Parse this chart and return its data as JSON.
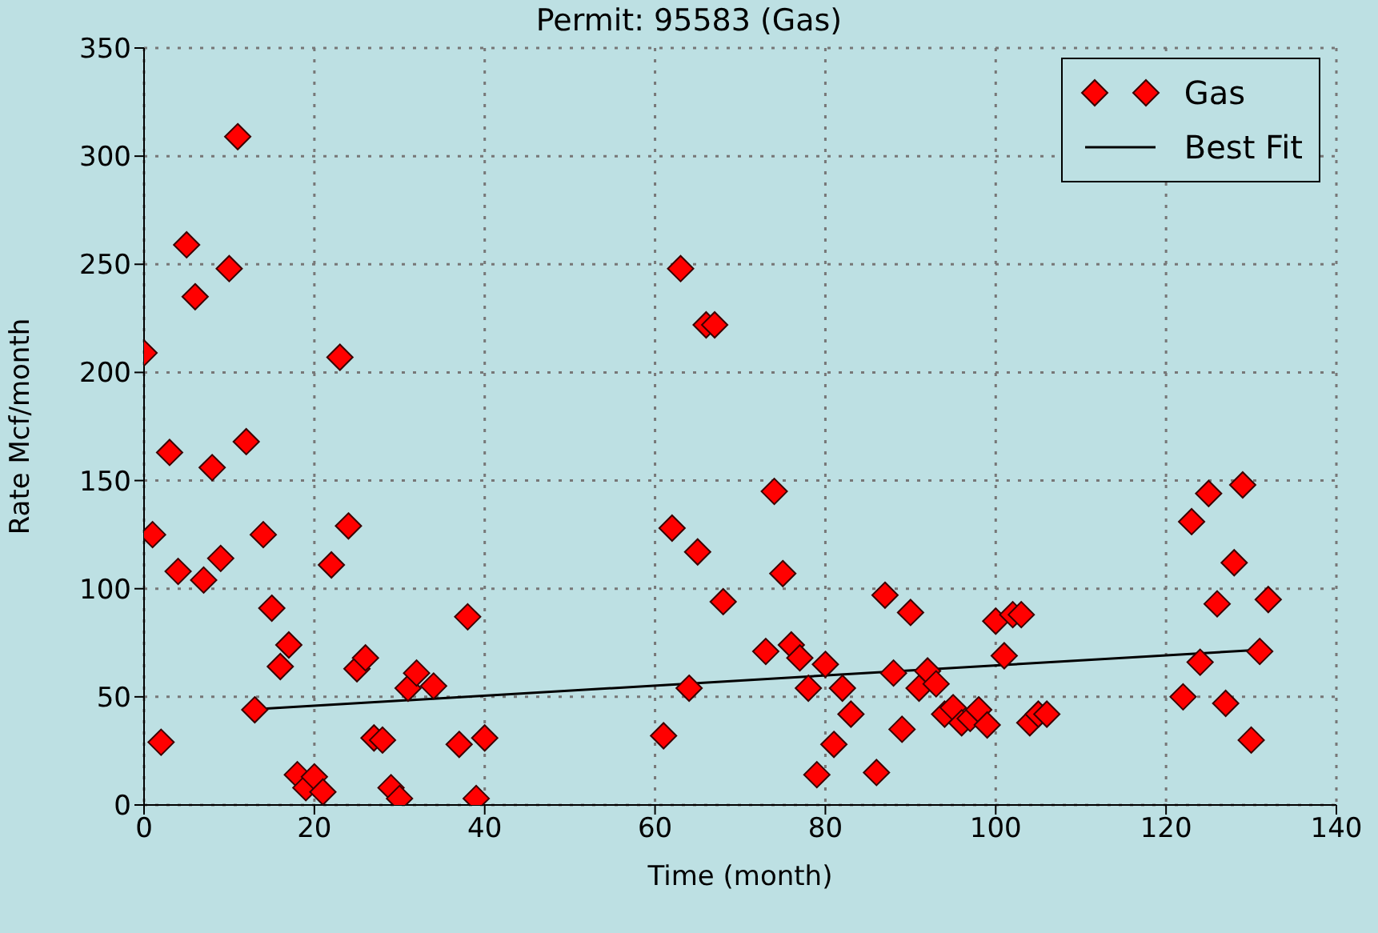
{
  "chart_data": {
    "type": "scatter",
    "title": "Permit: 95583 (Gas)",
    "xlabel": "Time (month)",
    "ylabel": "Rate Mcf/month",
    "xlim": [
      0,
      140
    ],
    "ylim": [
      0,
      350
    ],
    "xticks": [
      0,
      20,
      40,
      60,
      80,
      100,
      120,
      140
    ],
    "yticks": [
      0,
      50,
      100,
      150,
      200,
      250,
      300,
      350
    ],
    "grid": true,
    "legend": "top right",
    "marker": "diamond",
    "series": [
      {
        "name": "Gas",
        "color": "#ff0000",
        "x": [
          0,
          1,
          2,
          3,
          4,
          5,
          6,
          7,
          8,
          9,
          10,
          11,
          12,
          13,
          14,
          15,
          16,
          17,
          18,
          19,
          20,
          21,
          22,
          23,
          24,
          25,
          26,
          27,
          28,
          29,
          30,
          31,
          32,
          34,
          37,
          38,
          39,
          40,
          61,
          62,
          63,
          64,
          65,
          66,
          67,
          68,
          73,
          74,
          75,
          76,
          77,
          78,
          79,
          80,
          81,
          82,
          83,
          86,
          87,
          88,
          89,
          90,
          91,
          92,
          93,
          94,
          95,
          96,
          97,
          98,
          99,
          100,
          101,
          102,
          103,
          104,
          105,
          106,
          122,
          123,
          124,
          125,
          126,
          127,
          128,
          129,
          130,
          131,
          132
        ],
        "values": [
          209,
          125,
          29,
          163,
          108,
          259,
          235,
          104,
          156,
          114,
          248,
          309,
          168,
          44,
          125,
          91,
          64,
          74,
          14,
          8,
          13,
          6,
          111,
          207,
          129,
          63,
          68,
          31,
          30,
          8,
          3,
          54,
          61,
          55,
          28,
          87,
          3,
          31,
          32,
          128,
          248,
          54,
          117,
          222,
          222,
          94,
          71,
          145,
          107,
          74,
          68,
          54,
          14,
          65,
          28,
          54,
          42,
          15,
          97,
          61,
          35,
          89,
          54,
          62,
          56,
          42,
          45,
          38,
          40,
          44,
          37,
          85,
          69,
          88,
          88,
          38,
          42,
          42,
          50,
          131,
          66,
          144,
          93,
          47,
          112,
          148,
          30,
          71,
          95
        ]
      },
      {
        "name": "Best Fit",
        "type": "line",
        "color": "#000000",
        "line_style": "solid",
        "marker": "none",
        "x": [
          12,
          132
        ],
        "values": [
          44,
          72
        ]
      }
    ]
  }
}
